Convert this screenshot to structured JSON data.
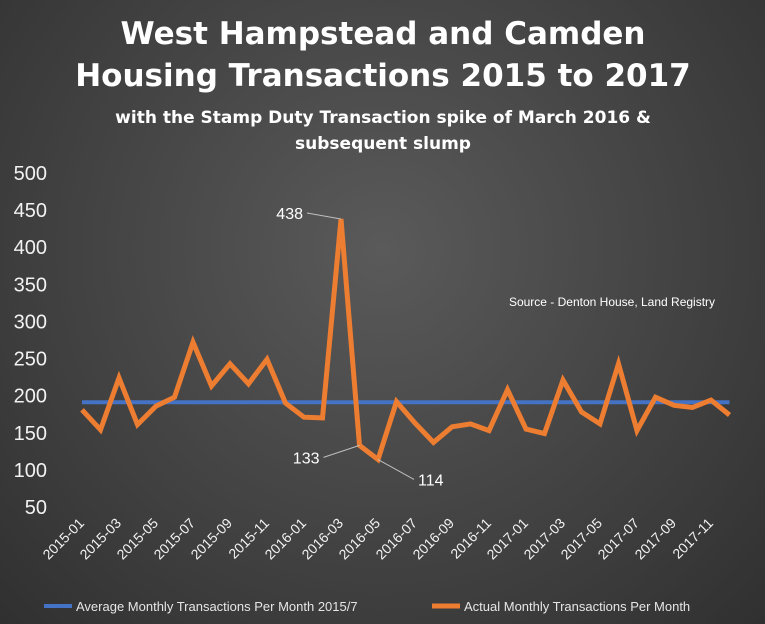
{
  "chart_data": {
    "type": "line",
    "title": "West Hampstead and Camden\nHousing Transactions 2015 to 2017",
    "subtitle": "with the Stamp Duty Transaction spike of March 2016 &\nsubsequent slump",
    "source_note": "Source - Denton House, Land Registry",
    "xlabel": "",
    "ylabel": "",
    "ylim": [
      50,
      500
    ],
    "y_ticks": [
      50,
      100,
      150,
      200,
      250,
      300,
      350,
      400,
      450,
      500
    ],
    "grid": false,
    "legend_position": "bottom",
    "x": [
      "2015-01",
      "2015-02",
      "2015-03",
      "2015-04",
      "2015-05",
      "2015-06",
      "2015-07",
      "2015-08",
      "2015-09",
      "2015-10",
      "2015-11",
      "2015-12",
      "2016-01",
      "2016-02",
      "2016-03",
      "2016-04",
      "2016-05",
      "2016-06",
      "2016-07",
      "2016-08",
      "2016-09",
      "2016-10",
      "2016-11",
      "2016-12",
      "2017-01",
      "2017-02",
      "2017-03",
      "2017-04",
      "2017-05",
      "2017-06",
      "2017-07",
      "2017-08",
      "2017-09",
      "2017-10",
      "2017-11",
      "2017-12"
    ],
    "x_tick_labels": [
      "2015-01",
      "2015-03",
      "2015-05",
      "2015-07",
      "2015-09",
      "2015-11",
      "2016-01",
      "2016-03",
      "2016-05",
      "2016-07",
      "2016-09",
      "2016-11",
      "2017-01",
      "2017-03",
      "2017-05",
      "2017-07",
      "2017-09",
      "2017-11"
    ],
    "series": [
      {
        "name": "Average Monthly Transactions Per Month 2015/7",
        "color": "#4472c4",
        "values": [
          191,
          191,
          191,
          191,
          191,
          191,
          191,
          191,
          191,
          191,
          191,
          191,
          191,
          191,
          191,
          191,
          191,
          191,
          191,
          191,
          191,
          191,
          191,
          191,
          191,
          191,
          191,
          191,
          191,
          191,
          191,
          191,
          191,
          191,
          191,
          191
        ]
      },
      {
        "name": "Actual Monthly Transactions Per Month",
        "color": "#ed7d31",
        "values": [
          181,
          154,
          224,
          161,
          186,
          198,
          272,
          213,
          243,
          216,
          249,
          190,
          171,
          170,
          438,
          133,
          114,
          192,
          163,
          137,
          158,
          162,
          153,
          208,
          155,
          149,
          221,
          178,
          162,
          243,
          153,
          198,
          187,
          184,
          194,
          174
        ]
      }
    ],
    "annotations": [
      {
        "label": "438",
        "index": 14,
        "value": 438
      },
      {
        "label": "133",
        "index": 15,
        "value": 133
      },
      {
        "label": "114",
        "index": 16,
        "value": 114
      }
    ]
  }
}
